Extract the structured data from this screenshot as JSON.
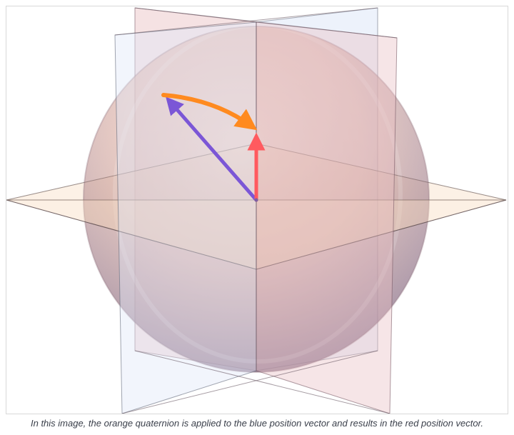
{
  "figure": {
    "caption": "In this image, the orange quaternion is applied to the blue position vector and results in the red position vector.",
    "colors": {
      "sphere": "#d89a8c",
      "horizontal_plane": "#f7d7b7",
      "blue_plane": "#dfe8f8",
      "red_plane": "#e8bfc2",
      "blue_vector": "#7b56d6",
      "orange_quaternion": "#ff8a1f",
      "red_vector": "#ff5a5f"
    }
  }
}
